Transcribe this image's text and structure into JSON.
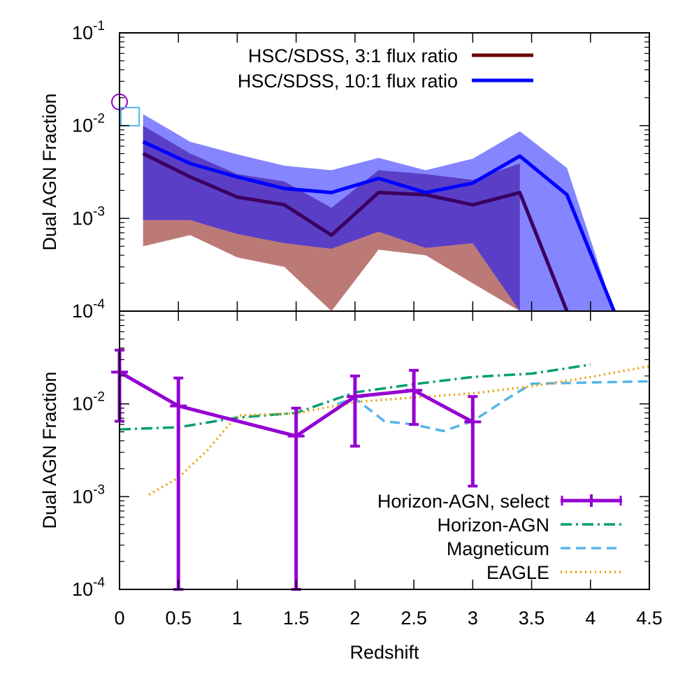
{
  "chart_data": [
    {
      "type": "line",
      "panel": "top",
      "title": "",
      "ylabel": "Dual AGN Fraction",
      "xlabel": "",
      "xlim": [
        0,
        4.5
      ],
      "ylim": [
        0.0001,
        0.1
      ],
      "yscale": "log",
      "ytick_labels": [
        {
          "base": "10",
          "exp": "-4"
        },
        {
          "base": "10",
          "exp": "-3"
        },
        {
          "base": "10",
          "exp": "-2"
        },
        {
          "base": "10",
          "exp": "-1"
        }
      ],
      "legend_position": "top-right",
      "series": [
        {
          "name": "HSC/SDSS, 3:1 flux ratio",
          "color": "#6b0000",
          "x": [
            0.2,
            0.6,
            1.0,
            1.4,
            1.8,
            2.2,
            2.6,
            3.0,
            3.4,
            3.8
          ],
          "y": [
            0.005,
            0.0028,
            0.0017,
            0.0014,
            0.00066,
            0.0019,
            0.0018,
            0.0014,
            0.0019,
            0.0001
          ],
          "band_color": "#bc7a76",
          "band_x": [
            0.2,
            0.6,
            1.0,
            1.4,
            1.8,
            2.2,
            2.6,
            3.0,
            3.4
          ],
          "band_lower": [
            0.0005,
            0.00066,
            0.00038,
            0.0003,
            0.0001,
            0.00046,
            0.0004,
            0.0002,
            0.0001
          ],
          "band_upper": [
            0.01,
            0.005,
            0.003,
            0.0025,
            0.0013,
            0.0033,
            0.003,
            0.0026,
            0.0039
          ]
        },
        {
          "name": "HSC/SDSS, 10:1 flux ratio",
          "color": "#0000ff",
          "x": [
            0.2,
            0.6,
            1.0,
            1.4,
            1.8,
            2.2,
            2.6,
            3.0,
            3.4,
            3.8,
            4.2
          ],
          "y": [
            0.0067,
            0.0039,
            0.0028,
            0.0021,
            0.0019,
            0.0027,
            0.0019,
            0.0024,
            0.0047,
            0.0018,
            0.0001
          ],
          "band_color": "#7b7bff",
          "band_x": [
            0.2,
            0.6,
            1.0,
            1.4,
            1.8,
            2.2,
            2.6,
            3.0,
            3.4,
            3.8,
            4.2
          ],
          "band_lower": [
            0.00096,
            0.00096,
            0.00068,
            0.00054,
            0.00047,
            0.00072,
            0.00048,
            0.00054,
            0.0001,
            0.0001,
            0.0001
          ],
          "band_upper": [
            0.0133,
            0.0067,
            0.0049,
            0.0037,
            0.0033,
            0.0045,
            0.0033,
            0.0044,
            0.0087,
            0.0035,
            0.0001
          ]
        }
      ],
      "markers": [
        {
          "shape": "circle",
          "x": 0.0,
          "y": 0.018,
          "color": "#9400d3"
        },
        {
          "shape": "square",
          "x": 0.09,
          "y": 0.0125,
          "color": "#56b4e9"
        }
      ]
    },
    {
      "type": "line",
      "panel": "bottom",
      "title": "",
      "ylabel": "Dual AGN Fraction",
      "xlabel": "Redshift",
      "xlim": [
        0,
        4.5
      ],
      "ylim": [
        0.0001,
        0.1
      ],
      "yscale": "log",
      "xtick_labels": [
        "0",
        "0.5",
        "1",
        "1.5",
        "2",
        "2.5",
        "3",
        "3.5",
        "4",
        "4.5"
      ],
      "ytick_labels": [
        {
          "base": "10",
          "exp": "-4"
        },
        {
          "base": "10",
          "exp": "-3"
        },
        {
          "base": "10",
          "exp": "-2"
        }
      ],
      "legend_position": "bottom-right",
      "series": [
        {
          "name": "Horizon-AGN, select",
          "color": "#9400d3",
          "style": "solid-errorbars",
          "x": [
            0.0,
            0.5,
            1.5,
            2.0,
            2.5,
            3.0
          ],
          "y": [
            0.022,
            0.0095,
            0.0045,
            0.012,
            0.014,
            0.0064
          ],
          "yerr_low": [
            0.0065,
            0.0001,
            0.0001,
            0.0035,
            0.006,
            0.0013
          ],
          "yerr_high": [
            0.038,
            0.019,
            0.009,
            0.02,
            0.023,
            0.012
          ]
        },
        {
          "name": "Horizon-AGN",
          "color": "#009e73",
          "style": "dashdot",
          "x": [
            0.0,
            0.5,
            1.0,
            1.5,
            2.0,
            2.5,
            3.0,
            3.5,
            4.0
          ],
          "y": [
            0.0053,
            0.0056,
            0.0071,
            0.008,
            0.0133,
            0.0163,
            0.0195,
            0.0212,
            0.0265
          ]
        },
        {
          "name": "Magneticum",
          "color": "#56b4e9",
          "style": "dashed",
          "x": [
            1.85,
            2.0,
            2.25,
            2.5,
            2.75,
            3.0,
            3.25,
            3.5,
            4.0,
            4.5
          ],
          "y": [
            0.01,
            0.0115,
            0.0065,
            0.006,
            0.0051,
            0.0065,
            0.0105,
            0.0165,
            0.017,
            0.0175
          ]
        },
        {
          "name": "EAGLE",
          "color": "#e69f00",
          "style": "dotted",
          "x": [
            0.25,
            0.5,
            0.75,
            1.0,
            1.5,
            2.0,
            2.5,
            3.0,
            3.5,
            4.0,
            4.5
          ],
          "y": [
            0.00105,
            0.0016,
            0.0032,
            0.0075,
            0.0079,
            0.0105,
            0.0117,
            0.013,
            0.0155,
            0.0195,
            0.0255
          ]
        }
      ]
    }
  ]
}
